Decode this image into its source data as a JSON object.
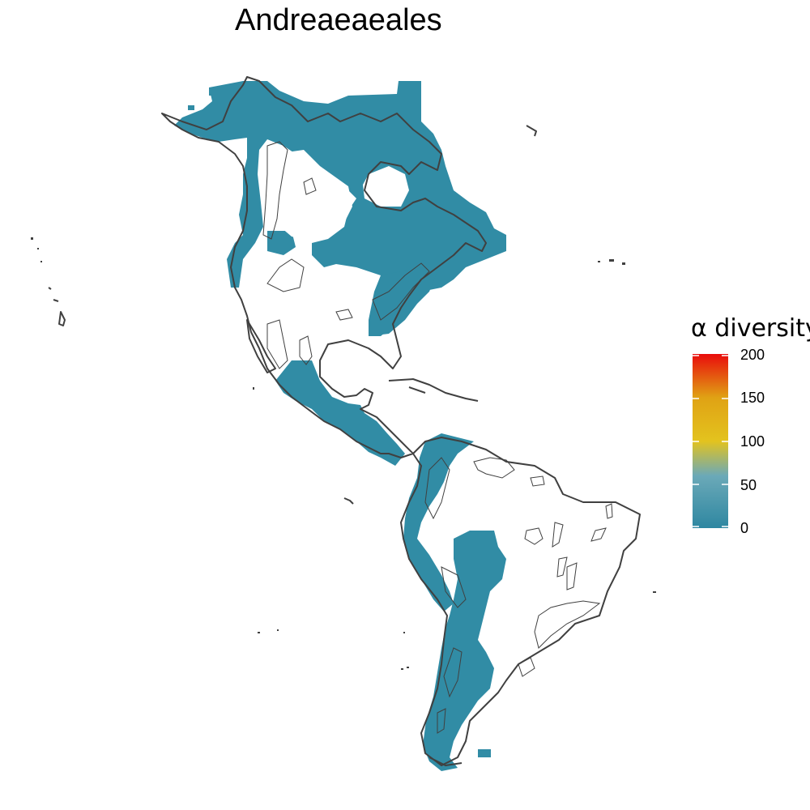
{
  "title": "Andreaeaeales",
  "legend": {
    "title": "α diversity",
    "ticks": [
      "200",
      "150",
      "100",
      "50",
      "0"
    ],
    "range": [
      0,
      200
    ],
    "color_stops": [
      "#2e87a1",
      "#6ba9b8",
      "#e3c31e",
      "#e0a214",
      "#e90c0c"
    ]
  },
  "colors": {
    "presence": "#318ca5",
    "outline": "#404040",
    "background": "#ffffff"
  },
  "map": {
    "region": "Americas",
    "presence_regions": [
      "north-american-boreal",
      "western-north-america",
      "eastern-north-america",
      "mexico-central-america",
      "andes",
      "southern-south-america"
    ]
  }
}
